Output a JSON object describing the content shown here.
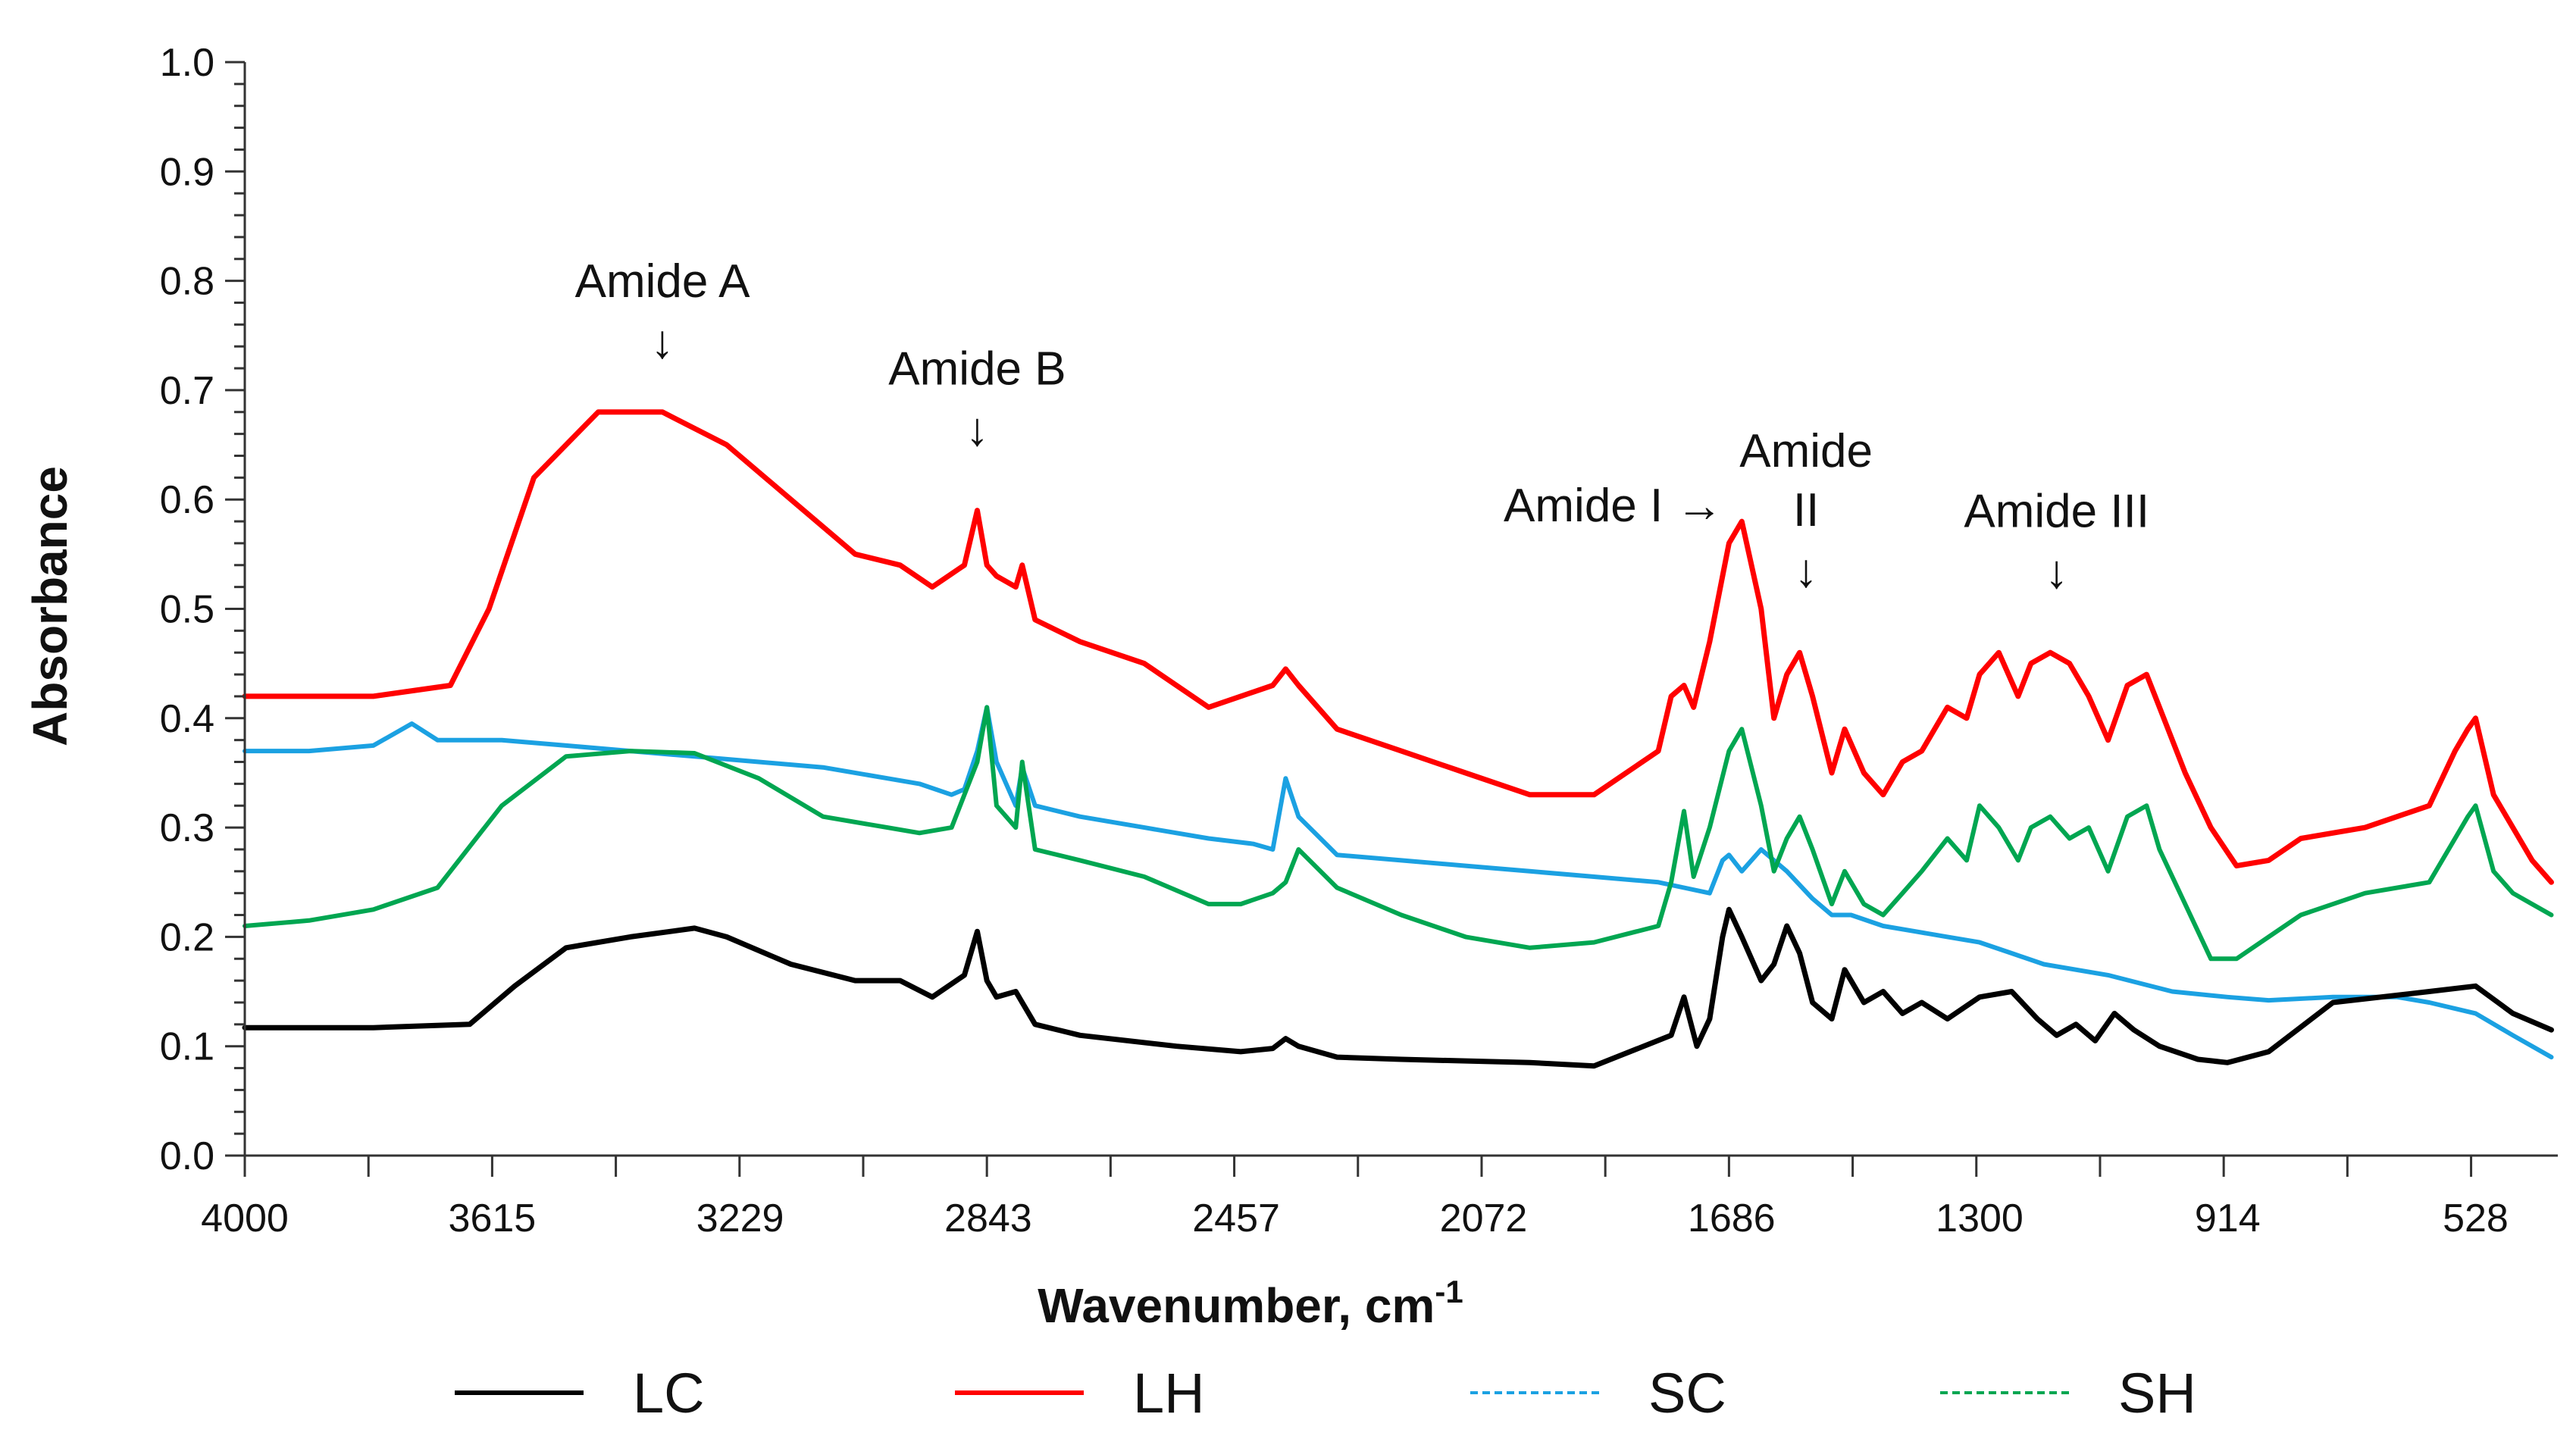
{
  "chart_data": {
    "type": "line",
    "title": "",
    "xlabel": "Wavenumber, cm",
    "xlabel_sup": "-1",
    "ylabel": "Absorbance",
    "xlim": [
      4000,
      400
    ],
    "ylim": [
      0.0,
      1.0
    ],
    "x_ticks": [
      4000,
      3615,
      3229,
      2843,
      2457,
      2072,
      1686,
      1300,
      914,
      528
    ],
    "x_tick_labels": [
      "4000",
      "3615",
      "3229",
      "2843",
      "2457",
      "2072",
      "1686",
      "1300",
      "914",
      "528"
    ],
    "y_ticks": [
      0.0,
      0.1,
      0.2,
      0.3,
      0.4,
      0.5,
      0.6,
      0.7,
      0.8,
      0.9,
      1.0
    ],
    "y_tick_labels": [
      "0.0",
      "0.1",
      "0.2",
      "0.3",
      "0.4",
      "0.5",
      "0.6",
      "0.7",
      "0.8",
      "0.9",
      "1.0"
    ],
    "grid": false,
    "legend_position": "bottom",
    "series": [
      {
        "name": "LC",
        "color": "#000000",
        "style": "solid",
        "x": [
          4000,
          3800,
          3650,
          3580,
          3500,
          3400,
          3300,
          3250,
          3150,
          3050,
          2980,
          2930,
          2880,
          2860,
          2845,
          2830,
          2800,
          2790,
          2770,
          2700,
          2550,
          2450,
          2400,
          2380,
          2360,
          2300,
          2200,
          2000,
          1900,
          1780,
          1760,
          1740,
          1720,
          1700,
          1690,
          1670,
          1640,
          1620,
          1600,
          1580,
          1560,
          1530,
          1510,
          1480,
          1450,
          1420,
          1390,
          1350,
          1300,
          1250,
          1210,
          1180,
          1150,
          1120,
          1090,
          1060,
          1020,
          960,
          914,
          850,
          750,
          600,
          528,
          470,
          410
        ],
        "values": [
          0.117,
          0.117,
          0.12,
          0.155,
          0.19,
          0.2,
          0.208,
          0.2,
          0.175,
          0.16,
          0.16,
          0.145,
          0.165,
          0.205,
          0.16,
          0.145,
          0.15,
          0.14,
          0.12,
          0.11,
          0.1,
          0.095,
          0.098,
          0.107,
          0.1,
          0.09,
          0.088,
          0.085,
          0.082,
          0.11,
          0.145,
          0.1,
          0.125,
          0.2,
          0.225,
          0.2,
          0.16,
          0.175,
          0.21,
          0.185,
          0.14,
          0.125,
          0.17,
          0.14,
          0.15,
          0.13,
          0.14,
          0.125,
          0.145,
          0.15,
          0.125,
          0.11,
          0.12,
          0.105,
          0.13,
          0.115,
          0.1,
          0.088,
          0.085,
          0.095,
          0.14,
          0.15,
          0.155,
          0.13,
          0.115
        ]
      },
      {
        "name": "LH",
        "color": "#ff0000",
        "style": "solid",
        "x": [
          4000,
          3800,
          3680,
          3620,
          3550,
          3450,
          3350,
          3250,
          3150,
          3050,
          2980,
          2930,
          2880,
          2860,
          2845,
          2830,
          2800,
          2790,
          2770,
          2700,
          2600,
          2500,
          2450,
          2400,
          2380,
          2360,
          2300,
          2200,
          2100,
          2000,
          1900,
          1800,
          1780,
          1760,
          1745,
          1720,
          1690,
          1670,
          1640,
          1620,
          1600,
          1580,
          1560,
          1530,
          1510,
          1480,
          1450,
          1420,
          1390,
          1350,
          1320,
          1300,
          1270,
          1240,
          1220,
          1190,
          1160,
          1130,
          1100,
          1070,
          1040,
          1020,
          980,
          940,
          900,
          850,
          800,
          700,
          600,
          560,
          540,
          528,
          500,
          470,
          440,
          410
        ],
        "values": [
          0.42,
          0.42,
          0.43,
          0.5,
          0.62,
          0.68,
          0.68,
          0.65,
          0.6,
          0.55,
          0.54,
          0.52,
          0.54,
          0.59,
          0.54,
          0.53,
          0.52,
          0.54,
          0.49,
          0.47,
          0.45,
          0.41,
          0.42,
          0.43,
          0.445,
          0.43,
          0.39,
          0.37,
          0.35,
          0.33,
          0.33,
          0.37,
          0.42,
          0.43,
          0.41,
          0.47,
          0.56,
          0.58,
          0.5,
          0.4,
          0.44,
          0.46,
          0.42,
          0.35,
          0.39,
          0.35,
          0.33,
          0.36,
          0.37,
          0.41,
          0.4,
          0.44,
          0.46,
          0.42,
          0.45,
          0.46,
          0.45,
          0.42,
          0.38,
          0.43,
          0.44,
          0.41,
          0.35,
          0.3,
          0.265,
          0.27,
          0.29,
          0.3,
          0.32,
          0.37,
          0.39,
          0.4,
          0.33,
          0.3,
          0.27,
          0.25
        ]
      },
      {
        "name": "SC",
        "color": "#1ba1e2",
        "style": "dashed",
        "x": [
          4000,
          3900,
          3800,
          3740,
          3700,
          3600,
          3500,
          3400,
          3300,
          3200,
          3100,
          3000,
          2950,
          2900,
          2880,
          2860,
          2845,
          2830,
          2800,
          2790,
          2770,
          2700,
          2600,
          2500,
          2430,
          2400,
          2380,
          2360,
          2300,
          2200,
          2100,
          2000,
          1900,
          1800,
          1760,
          1720,
          1700,
          1690,
          1670,
          1640,
          1600,
          1560,
          1530,
          1500,
          1450,
          1400,
          1350,
          1300,
          1250,
          1200,
          1100,
          1000,
          914,
          850,
          750,
          650,
          600,
          528,
          470,
          410
        ],
        "values": [
          0.37,
          0.37,
          0.375,
          0.395,
          0.38,
          0.38,
          0.375,
          0.37,
          0.365,
          0.36,
          0.355,
          0.345,
          0.34,
          0.33,
          0.335,
          0.37,
          0.41,
          0.36,
          0.32,
          0.355,
          0.32,
          0.31,
          0.3,
          0.29,
          0.285,
          0.28,
          0.345,
          0.31,
          0.275,
          0.27,
          0.265,
          0.26,
          0.255,
          0.25,
          0.245,
          0.24,
          0.27,
          0.275,
          0.26,
          0.28,
          0.26,
          0.235,
          0.22,
          0.22,
          0.21,
          0.205,
          0.2,
          0.195,
          0.185,
          0.175,
          0.165,
          0.15,
          0.145,
          0.142,
          0.145,
          0.145,
          0.14,
          0.13,
          0.11,
          0.09
        ]
      },
      {
        "name": "SH",
        "color": "#00a651",
        "style": "dashed",
        "x": [
          4000,
          3900,
          3800,
          3700,
          3600,
          3500,
          3400,
          3300,
          3200,
          3100,
          3000,
          2950,
          2900,
          2880,
          2860,
          2845,
          2830,
          2800,
          2790,
          2770,
          2700,
          2600,
          2500,
          2450,
          2400,
          2380,
          2360,
          2300,
          2200,
          2100,
          2000,
          1900,
          1800,
          1780,
          1760,
          1745,
          1720,
          1690,
          1670,
          1640,
          1620,
          1600,
          1580,
          1560,
          1530,
          1510,
          1480,
          1450,
          1420,
          1390,
          1350,
          1320,
          1300,
          1270,
          1240,
          1220,
          1190,
          1160,
          1130,
          1100,
          1070,
          1040,
          1020,
          980,
          940,
          900,
          850,
          800,
          700,
          600,
          560,
          540,
          528,
          500,
          470,
          440,
          410
        ],
        "values": [
          0.21,
          0.215,
          0.225,
          0.245,
          0.32,
          0.365,
          0.37,
          0.368,
          0.345,
          0.31,
          0.3,
          0.295,
          0.3,
          0.33,
          0.36,
          0.41,
          0.32,
          0.3,
          0.36,
          0.28,
          0.27,
          0.255,
          0.23,
          0.23,
          0.24,
          0.25,
          0.28,
          0.245,
          0.22,
          0.2,
          0.19,
          0.195,
          0.21,
          0.25,
          0.315,
          0.255,
          0.3,
          0.37,
          0.39,
          0.32,
          0.26,
          0.29,
          0.31,
          0.28,
          0.23,
          0.26,
          0.23,
          0.22,
          0.24,
          0.26,
          0.29,
          0.27,
          0.32,
          0.3,
          0.27,
          0.3,
          0.31,
          0.29,
          0.3,
          0.26,
          0.31,
          0.32,
          0.28,
          0.23,
          0.18,
          0.18,
          0.2,
          0.22,
          0.24,
          0.25,
          0.29,
          0.31,
          0.32,
          0.26,
          0.24,
          0.23,
          0.22
        ]
      }
    ],
    "annotations": [
      {
        "name": "amide-a",
        "lines": [
          "Amide A"
        ],
        "arrow": "↓",
        "x": 3350,
        "y": 0.785
      },
      {
        "name": "amide-b",
        "lines": [
          "Amide B"
        ],
        "arrow": "↓",
        "x": 2860,
        "y": 0.705
      },
      {
        "name": "amide-i",
        "lines": [
          "Amide I →"
        ],
        "arrow": "",
        "x": 1870,
        "y": 0.58
      },
      {
        "name": "amide-ii",
        "lines": [
          "Amide",
          "II"
        ],
        "arrow": "↓",
        "x": 1570,
        "y": 0.63
      },
      {
        "name": "amide-iii",
        "lines": [
          "Amide III"
        ],
        "arrow": "↓",
        "x": 1180,
        "y": 0.575
      }
    ]
  }
}
